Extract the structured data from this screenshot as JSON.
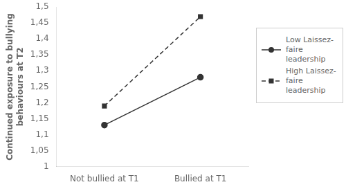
{
  "chart_data": {
    "type": "line",
    "categories": [
      "Not bullied at T1",
      "Bullied at T1"
    ],
    "series": [
      {
        "name": "Low Laissez-\nfaire leadership",
        "color": "#333333",
        "values": [
          1.13,
          1.28
        ],
        "marker": "circle",
        "line_style": "solid"
      },
      {
        "name": "High Laissez-\nfaire leadership",
        "color": "#333333",
        "values": [
          1.19,
          1.47
        ],
        "marker": "square",
        "line_style": "dashed"
      }
    ],
    "ylabel": "Continued exposure to bullying\nbehaviours at T2",
    "ylim": [
      1.0,
      1.5
    ],
    "yticks": [
      1,
      {
        "value": 1.05,
        "label": "1,05"
      },
      {
        "value": 1.1,
        "label": "1,1"
      },
      {
        "value": 1.15,
        "label": "1,15"
      },
      {
        "value": 1.2,
        "label": "1,2"
      },
      {
        "value": 1.25,
        "label": "1,25"
      },
      {
        "value": 1.3,
        "label": "1,3"
      },
      {
        "value": 1.35,
        "label": "1,35"
      },
      {
        "value": 1.4,
        "label": "1,4"
      },
      {
        "value": 1.45,
        "label": "1,45"
      },
      {
        "value": 1.5,
        "label": "1,5"
      }
    ],
    "grid": false,
    "legend": "right"
  }
}
